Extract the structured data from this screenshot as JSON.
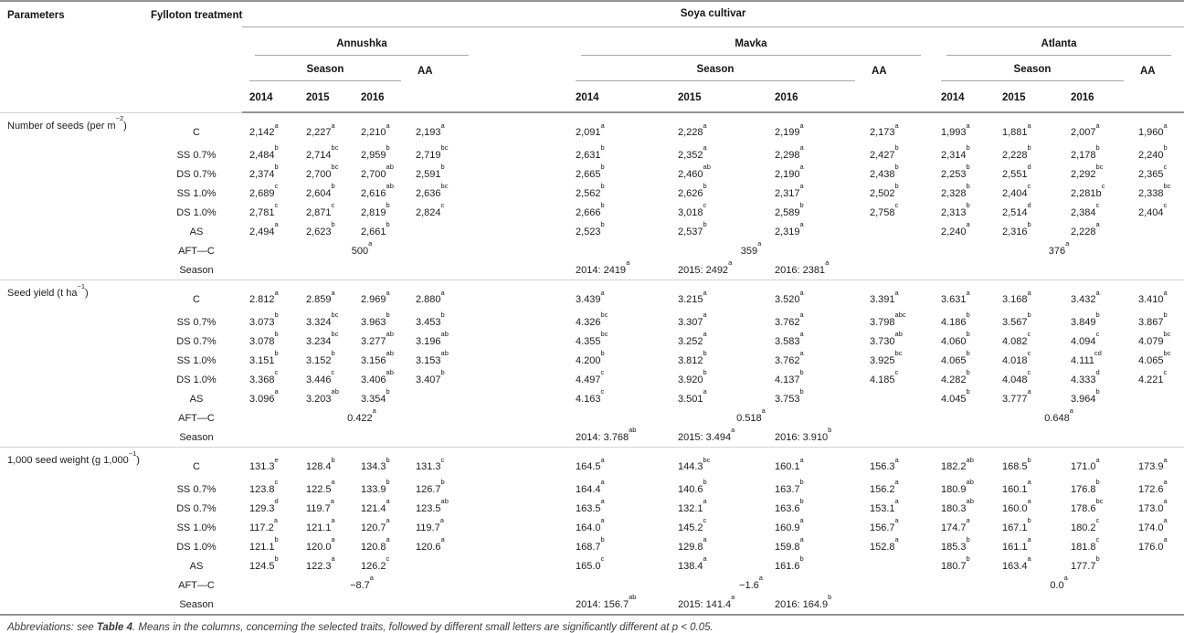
{
  "header": {
    "parameters": "Parameters",
    "treatment": "Fylloton treatment",
    "cultivar_group": "Soya cultivar",
    "cultivars": [
      "Annushka",
      "Mavka",
      "Atlanta"
    ],
    "season": "Season",
    "aa": "AA",
    "years": [
      "2014",
      "2015",
      "2016"
    ]
  },
  "sections": [
    {
      "parameter": "Number of seeds (per m^{−2})",
      "rows": [
        {
          "type": "values",
          "treatment": "C",
          "values": [
            "2,142^{a}",
            "2,227^{a}",
            "2,210^{a}",
            "2,193^{a}",
            "2,091^{a}",
            "2,228^{a}",
            "2,199^{a}",
            "2,173^{a}",
            "1,993^{a}",
            "1,881^{a}",
            "2,007^{a}",
            "1,960^{a}"
          ]
        },
        {
          "type": "values",
          "treatment": "SS 0.7%",
          "values": [
            "2,484^{b}",
            "2,714^{bc}",
            "2,959^{b}",
            "2,719^{bc}",
            "2,631^{b}",
            "2,352^{a}",
            "2,298^{a}",
            "2,427^{b}",
            "2,314^{b}",
            "2,228^{b}",
            "2,178^{b}",
            "2,240^{b}"
          ]
        },
        {
          "type": "values",
          "treatment": "DS 0.7%",
          "values": [
            "2,374^{b}",
            "2,700^{bc}",
            "2,700^{ab}",
            "2,591^{b}",
            "2,665^{b}",
            "2,460^{ab}",
            "2,190^{a}",
            "2,438^{b}",
            "2,253^{b}",
            "2,551^{d}",
            "2,292^{bc}",
            "2,365^{c}"
          ]
        },
        {
          "type": "values",
          "treatment": "SS 1.0%",
          "values": [
            "2,689^{c}",
            "2,604^{b}",
            "2,616^{ab}",
            "2,636^{bc}",
            "2,562^{b}",
            "2,626^{b}",
            "2,317^{a}",
            "2,502^{b}",
            "2,328^{b}",
            "2,404^{c}",
            "2,281b^{c}",
            "2,338^{bc}"
          ]
        },
        {
          "type": "values",
          "treatment": "DS 1.0%",
          "values": [
            "2,781^{c}",
            "2,871^{c}",
            "2,819^{b}",
            "2,824^{c}",
            "2,666^{b}",
            "3,018^{c}",
            "2,589^{b}",
            "2,758^{c}",
            "2,313^{b}",
            "2,514^{d}",
            "2,384^{c}",
            "2,404^{c}"
          ]
        },
        {
          "type": "values",
          "treatment": "AS",
          "values": [
            "2,494^{a}",
            "2,623^{b}",
            "2,661^{b}",
            "",
            "2,523^{b}",
            "2,537^{b}",
            "2,319^{a}",
            "",
            "2,240^{a}",
            "2,316^{b}",
            "2,228^{a}",
            ""
          ]
        },
        {
          "type": "aft",
          "treatment": "AFT—C",
          "values": [
            "500^{a}",
            "359^{a}",
            "376^{a}"
          ]
        },
        {
          "type": "season",
          "treatment": "Season",
          "values": [
            "2014: 2419^{a}",
            "2015: 2492^{a}",
            "2016: 2381^{a}"
          ]
        }
      ]
    },
    {
      "parameter": "Seed yield (t ha^{−1})",
      "rows": [
        {
          "type": "values",
          "treatment": "C",
          "values": [
            "2.812^{a}",
            "2.859^{a}",
            "2.969^{a}",
            "2.880^{a}",
            "3.439^{a}",
            "3.215^{a}",
            "3.520^{a}",
            "3.391^{a}",
            "3.631^{a}",
            "3.168^{a}",
            "3.432^{a}",
            "3.410^{a}"
          ]
        },
        {
          "type": "values",
          "treatment": "SS 0.7%",
          "values": [
            "3.073^{b}",
            "3.324^{bc}",
            "3.963^{b}",
            "3.453^{b}",
            "4.326^{bc}",
            "3.307^{a}",
            "3.762^{a}",
            "3.798^{abc}",
            "4.186^{b}",
            "3.567^{b}",
            "3.849^{b}",
            "3.867^{b}"
          ]
        },
        {
          "type": "values",
          "treatment": "DS 0.7%",
          "values": [
            "3.078^{b}",
            "3.234^{bc}",
            "3.277^{ab}",
            "3.196^{ab}",
            "4.355^{bc}",
            "3.252^{a}",
            "3.583^{a}",
            "3.730^{ab}",
            "4.060^{b}",
            "4.082^{c}",
            "4.094^{c}",
            "4.079^{bc}"
          ]
        },
        {
          "type": "values",
          "treatment": "SS 1.0%",
          "values": [
            "3.151^{b}",
            "3.152^{b}",
            "3.156^{ab}",
            "3.153^{ab}",
            "4.200^{b}",
            "3.812^{b}",
            "3.762^{a}",
            "3.925^{bc}",
            "4.065^{b}",
            "4.018^{c}",
            "4.111^{cd}",
            "4.065^{bc}"
          ]
        },
        {
          "type": "values",
          "treatment": "DS 1.0%",
          "values": [
            "3.368^{c}",
            "3.446^{c}",
            "3.406^{ab}",
            "3.407^{b}",
            "4.497^{c}",
            "3.920^{b}",
            "4.137^{b}",
            "4.185^{c}",
            "4.282^{b}",
            "4.048^{c}",
            "4.333^{d}",
            "4.221^{c}"
          ]
        },
        {
          "type": "values",
          "treatment": "AS",
          "values": [
            "3.096^{a}",
            "3.203^{ab}",
            "3.354^{b}",
            "",
            "4.163^{c}",
            "3.501^{a}",
            "3.753^{b}",
            "",
            "4.045^{b}",
            "3.777^{a}",
            "3.964^{b}",
            ""
          ]
        },
        {
          "type": "aft",
          "treatment": "AFT—C",
          "values": [
            "0.422^{a}",
            "0.518^{a}",
            "0.648^{a}"
          ]
        },
        {
          "type": "season",
          "treatment": "Season",
          "values": [
            "2014: 3.768^{ab}",
            "2015: 3.494^{a}",
            "2016: 3.910^{b}"
          ]
        }
      ]
    },
    {
      "parameter": "1,000 seed weight (g 1,000^{−1})",
      "rows": [
        {
          "type": "values",
          "treatment": "C",
          "values": [
            "131.3^{e}",
            "128.4^{b}",
            "134.3^{b}",
            "131.3^{c}",
            "164.5^{a}",
            "144.3^{bc}",
            "160.1^{a}",
            "156.3^{a}",
            "182.2^{ab}",
            "168.5^{b}",
            "171.0^{a}",
            "173.9^{a}"
          ]
        },
        {
          "type": "values",
          "treatment": "SS 0.7%",
          "values": [
            "123.8^{c}",
            "122.5^{a}",
            "133.9^{b}",
            "126.7^{b}",
            "164.4^{a}",
            "140.6^{b}",
            "163.7^{b}",
            "156.2^{a}",
            "180.9^{ab}",
            "160.1^{a}",
            "176.8^{b}",
            "172.6^{a}"
          ]
        },
        {
          "type": "values",
          "treatment": "DS 0.7%",
          "values": [
            "129.3^{d}",
            "119.7^{a}",
            "121.4^{a}",
            "123.5^{ab}",
            "163.5^{a}",
            "132.1^{a}",
            "163.6^{b}",
            "153.1^{a}",
            "180.3^{ab}",
            "160.0^{a}",
            "178.6^{bc}",
            "173.0^{a}"
          ]
        },
        {
          "type": "values",
          "treatment": "SS 1.0%",
          "values": [
            "117.2^{a}",
            "121.1^{a}",
            "120.7^{a}",
            "119.7^{a}",
            "164.0^{a}",
            "145.2^{c}",
            "160.9^{a}",
            "156.7^{a}",
            "174.7^{a}",
            "167.1^{b}",
            "180.2^{c}",
            "174.0^{a}"
          ]
        },
        {
          "type": "values",
          "treatment": "DS 1.0%",
          "values": [
            "121.1^{b}",
            "120.0^{a}",
            "120.8^{a}",
            "120.6^{a}",
            "168.7^{b}",
            "129.8^{a}",
            "159.8^{a}",
            "152.8^{a}",
            "185.3^{b}",
            "161.1^{a}",
            "181.8^{c}",
            "176.0^{a}"
          ]
        },
        {
          "type": "values",
          "treatment": "AS",
          "values": [
            "124.5^{b}",
            "122.3^{a}",
            "126.2^{c}",
            "",
            "165.0^{c}",
            "138.4^{a}",
            "161.6^{b}",
            "",
            "180.7^{b}",
            "163.4^{a}",
            "177.7^{b}",
            ""
          ]
        },
        {
          "type": "aft",
          "treatment": "AFT—C",
          "values": [
            "−8.7^{a}",
            "−1.6^{a}",
            "0.0^{a}"
          ]
        },
        {
          "type": "season",
          "treatment": "Season",
          "values": [
            "2014: 156.7^{ab}",
            "2015: 141.4^{a}",
            "2016: 164.9^{b}"
          ]
        }
      ]
    }
  ],
  "footnote": {
    "prefix": "Abbreviations: see ",
    "table_ref": "Table 4",
    "rest": ". Means in the columns, concerning the selected traits, followed by different small letters are significantly different at p < 0.05."
  }
}
